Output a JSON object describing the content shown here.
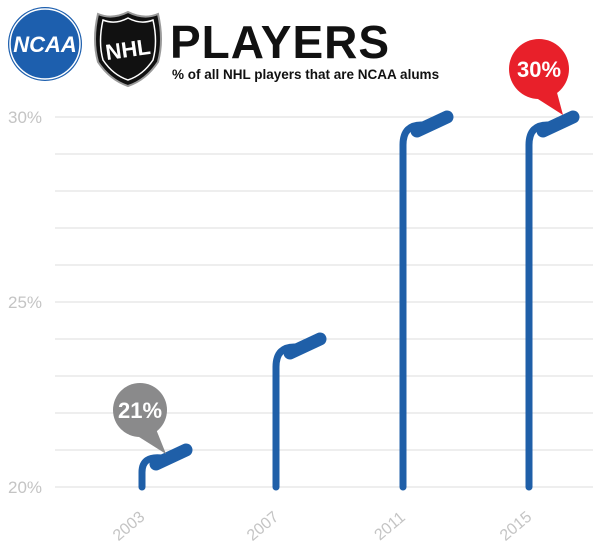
{
  "header": {
    "ncaa_logo_text": "NCAA",
    "nhl_logo_text": "NHL",
    "title": "PLAYERS",
    "subtitle": "% of all NHL players that are NCAA alums"
  },
  "colors": {
    "stick": "#1f5fa8",
    "first_callout": "#8a8a8b",
    "last_callout": "#e8202a",
    "grid": "#dcdcdc",
    "tick_text": "#c4c4c4",
    "ncaa_blue": "#1d5fae",
    "nhl_black": "#111111"
  },
  "chart_data": {
    "type": "bar",
    "title": "PLAYERS",
    "subtitle": "% of all NHL players that are NCAA alums",
    "categories": [
      "2003",
      "2007",
      "2011",
      "2015"
    ],
    "values": [
      21,
      24,
      30,
      30
    ],
    "ylim": [
      20,
      30
    ],
    "yticks": [
      "20%",
      "25%",
      "30%"
    ],
    "grid": true,
    "annotations": [
      {
        "category": "2003",
        "label": "21%",
        "color": "gray"
      },
      {
        "category": "2015",
        "label": "30%",
        "color": "red"
      }
    ]
  }
}
